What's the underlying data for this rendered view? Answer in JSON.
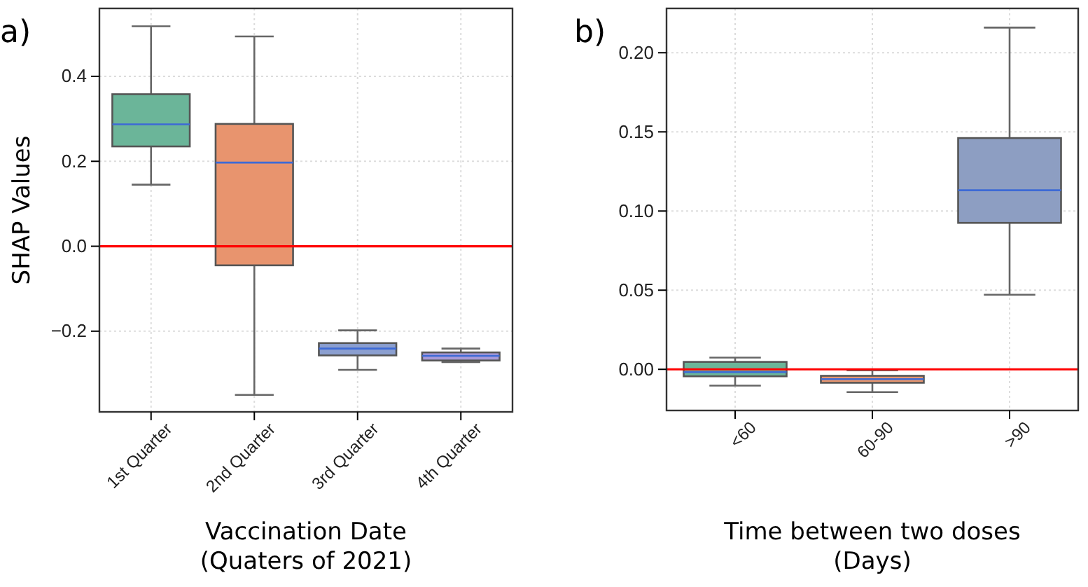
{
  "chart_data": [
    {
      "type": "box",
      "title": "a)",
      "xlabel": "Vaccination Date\n(Quaters of 2021)",
      "ylabel": "SHAP Values",
      "categories": [
        "1st Quarter",
        "2nd Quarter",
        "3rd Quarter",
        "4th Quarter"
      ],
      "boxes": [
        {
          "low": 0.145,
          "q1": 0.235,
          "median": 0.287,
          "q3": 0.358,
          "high": 0.518
        },
        {
          "low": -0.35,
          "q1": -0.045,
          "median": 0.197,
          "q3": 0.288,
          "high": 0.494
        },
        {
          "low": -0.291,
          "q1": -0.257,
          "median": -0.241,
          "q3": -0.228,
          "high": -0.198
        },
        {
          "low": -0.273,
          "q1": -0.269,
          "median": -0.258,
          "q3": -0.25,
          "high": -0.241
        }
      ],
      "colors": [
        "#6bb599",
        "#e8946e",
        "#8b9fd0",
        "#a99bd8"
      ],
      "ylim": [
        -0.39,
        0.56
      ],
      "yticks": [
        {
          "value": -0.2,
          "label": "−0.2"
        },
        {
          "value": 0,
          "label": "0.0"
        },
        {
          "value": 0.2,
          "label": "0.2"
        },
        {
          "value": 0.4,
          "label": "0.4"
        }
      ],
      "grid": true,
      "ref_lines": [
        {
          "axis": "y",
          "value": 0,
          "color": "#ff0000"
        }
      ]
    },
    {
      "type": "box",
      "title": "b)",
      "xlabel": "Time between two doses\n(Days)",
      "categories": [
        "<60",
        "60-90",
        ">90"
      ],
      "boxes": [
        {
          "low": -0.0103,
          "q1": -0.0044,
          "median": -0.0018,
          "q3": 0.0047,
          "high": 0.0074
        },
        {
          "low": -0.0144,
          "q1": -0.0085,
          "median": -0.0062,
          "q3": -0.0041,
          "high": -0.0006
        },
        {
          "low": 0.0471,
          "q1": 0.0925,
          "median": 0.1131,
          "q3": 0.1461,
          "high": 0.2159
        }
      ],
      "colors": [
        "#6bb599",
        "#e8976f",
        "#8d9ec2"
      ],
      "ylim": [
        -0.026,
        0.228
      ],
      "yticks": [
        {
          "value": 0,
          "label": "0.00"
        },
        {
          "value": 0.05,
          "label": "0.05"
        },
        {
          "value": 0.1,
          "label": "0.10"
        },
        {
          "value": 0.15,
          "label": "0.15"
        },
        {
          "value": 0.2,
          "label": "0.20"
        }
      ],
      "grid": true,
      "ref_lines": [
        {
          "axis": "y",
          "value": 0,
          "color": "#ff0000"
        }
      ]
    }
  ]
}
